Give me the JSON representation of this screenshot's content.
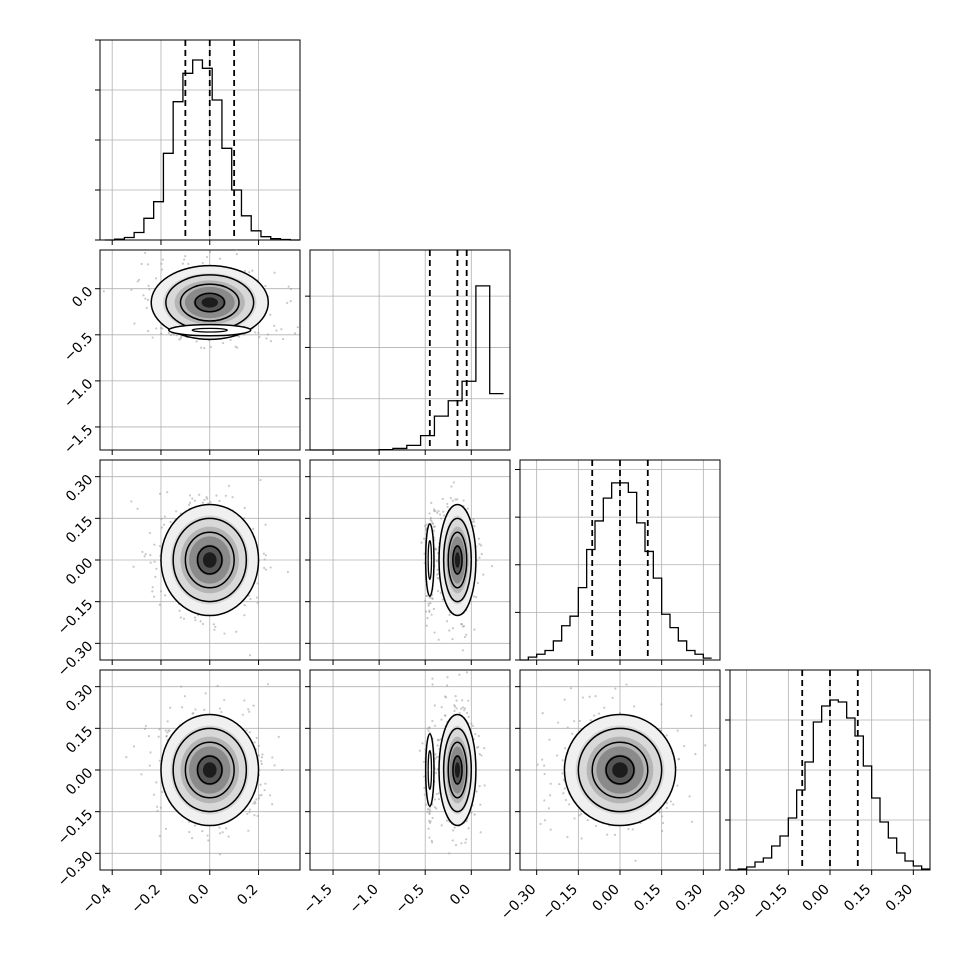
{
  "chart_data": {
    "type": "corner",
    "variables": 4,
    "grid": true,
    "contour_levels": 4,
    "quantile_lines": 3,
    "panels": {
      "diagonal": [
        {
          "var": 0,
          "type": "histogram",
          "xlim": [
            -0.45,
            0.37
          ],
          "quantiles": [
            -0.1,
            0.0,
            0.1
          ],
          "bins": [
            -0.43,
            -0.39,
            -0.35,
            -0.31,
            -0.27,
            -0.23,
            -0.19,
            -0.15,
            -0.11,
            -0.07,
            -0.03,
            0.01,
            0.05,
            0.09,
            0.13,
            0.17,
            0.21,
            0.25,
            0.29,
            0.33,
            0.37
          ],
          "counts": [
            0.0,
            0.5,
            1.5,
            4.5,
            13.0,
            23.0,
            52.0,
            83.0,
            100.0,
            108.0,
            103.0,
            84.0,
            55.0,
            30.0,
            14.5,
            5.5,
            2.0,
            0.8,
            0.3,
            0.0
          ],
          "ymax": 120
        },
        {
          "var": 1,
          "type": "histogram",
          "xlim": [
            -1.75,
            0.42
          ],
          "quantiles": [
            -0.45,
            -0.15,
            -0.05
          ],
          "bins": [
            -1.75,
            -1.6,
            -1.45,
            -1.3,
            -1.15,
            -1.0,
            -0.85,
            -0.7,
            -0.55,
            -0.4,
            -0.25,
            -0.1,
            0.05,
            0.2,
            0.35
          ],
          "counts": [
            0.0,
            0.0,
            0.0,
            0.0,
            0.0,
            0.3,
            1.5,
            4.5,
            14.0,
            33.0,
            48.0,
            67.0,
            160.0,
            55.0
          ],
          "ymax": 195
        },
        {
          "var": 2,
          "type": "histogram",
          "xlim": [
            -0.36,
            0.36
          ],
          "quantiles": [
            -0.1,
            0.0,
            0.1
          ],
          "bins": [
            -0.36,
            -0.33,
            -0.3,
            -0.27,
            -0.24,
            -0.21,
            -0.18,
            -0.15,
            -0.12,
            -0.09,
            -0.06,
            -0.03,
            0.0,
            0.03,
            0.06,
            0.09,
            0.12,
            0.15,
            0.18,
            0.21,
            0.24,
            0.27,
            0.3,
            0.33
          ],
          "counts": [
            0.0,
            1.5,
            3.0,
            5.0,
            10.0,
            18.0,
            23.0,
            38.0,
            58.0,
            73.0,
            85.0,
            93.0,
            93.0,
            88.0,
            72.0,
            57.0,
            43.0,
            24.0,
            17.0,
            10.0,
            5.0,
            3.0,
            1.0
          ],
          "ymax": 105
        },
        {
          "var": 3,
          "type": "histogram",
          "xlim": [
            -0.36,
            0.36
          ],
          "quantiles": [
            -0.1,
            0.0,
            0.1
          ],
          "bins": [
            -0.36,
            -0.33,
            -0.3,
            -0.27,
            -0.24,
            -0.21,
            -0.18,
            -0.15,
            -0.12,
            -0.09,
            -0.06,
            -0.03,
            0.0,
            0.03,
            0.06,
            0.09,
            0.12,
            0.15,
            0.18,
            0.21,
            0.24,
            0.27,
            0.3,
            0.33,
            0.36
          ],
          "counts": [
            0.0,
            0.5,
            1.5,
            4.0,
            6.0,
            12.0,
            17.0,
            26.0,
            40.0,
            54.0,
            74.0,
            82.0,
            85.0,
            84.0,
            76.0,
            67.0,
            52.0,
            36.0,
            24.0,
            16.0,
            8.5,
            4.5,
            2.0,
            0.5
          ],
          "ymax": 100
        }
      ],
      "joint": [
        {
          "row": 1,
          "col": 0,
          "x_center": 0.0,
          "y_center": -0.15,
          "x_spread": 0.12,
          "y_spread": 0.2,
          "secondary_y": -0.45
        },
        {
          "row": 2,
          "col": 0,
          "x_center": 0.0,
          "y_center": 0.0,
          "x_spread": 0.1,
          "y_spread": 0.1
        },
        {
          "row": 2,
          "col": 1,
          "x_center": -0.15,
          "y_center": 0.0,
          "x_spread": 0.1,
          "y_spread": 0.1,
          "secondary_x": -0.45
        },
        {
          "row": 3,
          "col": 0,
          "x_center": 0.0,
          "y_center": 0.0,
          "x_spread": 0.1,
          "y_spread": 0.1
        },
        {
          "row": 3,
          "col": 1,
          "x_center": -0.15,
          "y_center": 0.0,
          "x_spread": 0.1,
          "y_spread": 0.1,
          "secondary_x": -0.45
        },
        {
          "row": 3,
          "col": 2,
          "x_center": 0.0,
          "y_center": 0.0,
          "x_spread": 0.1,
          "y_spread": 0.1
        }
      ]
    },
    "axes": {
      "col_xlim": [
        [
          -0.45,
          0.37
        ],
        [
          -1.75,
          0.42
        ],
        [
          -0.36,
          0.36
        ],
        [
          -0.36,
          0.36
        ]
      ],
      "row_ylim": [
        null,
        [
          -1.75,
          0.42
        ],
        [
          -0.36,
          0.36
        ],
        [
          -0.36,
          0.36
        ]
      ],
      "col_xticks": [
        [
          -0.4,
          -0.2,
          0.0,
          0.2
        ],
        [
          -1.5,
          -1.0,
          -0.5,
          0.0
        ],
        [
          -0.3,
          -0.15,
          0.0,
          0.15,
          0.3
        ],
        [
          -0.3,
          -0.15,
          0.0,
          0.15,
          0.3
        ]
      ],
      "col_xticklabels": [
        [
          "−0.4",
          "−0.2",
          "0.0",
          "0.2"
        ],
        [
          "−1.5",
          "−1.0",
          "−0.5",
          "0.0"
        ],
        [
          "−0.30",
          "−0.15",
          "0.00",
          "0.15",
          "0.30"
        ],
        [
          "−0.30",
          "−0.15",
          "0.00",
          "0.15",
          "0.30"
        ]
      ],
      "row_yticks": [
        null,
        [
          0.0,
          -0.5,
          -1.0,
          -1.5
        ],
        [
          0.3,
          0.15,
          0.0,
          -0.15,
          -0.3
        ],
        [
          0.3,
          0.15,
          0.0,
          -0.15,
          -0.3
        ]
      ],
      "row_yticklabels": [
        null,
        [
          "0.0",
          "−0.5",
          "−1.0",
          "−1.5"
        ],
        [
          "0.30",
          "0.15",
          "0.00",
          "−0.15",
          "−0.30"
        ],
        [
          "0.30",
          "0.15",
          "0.00",
          "−0.15",
          "−0.30"
        ]
      ]
    }
  }
}
